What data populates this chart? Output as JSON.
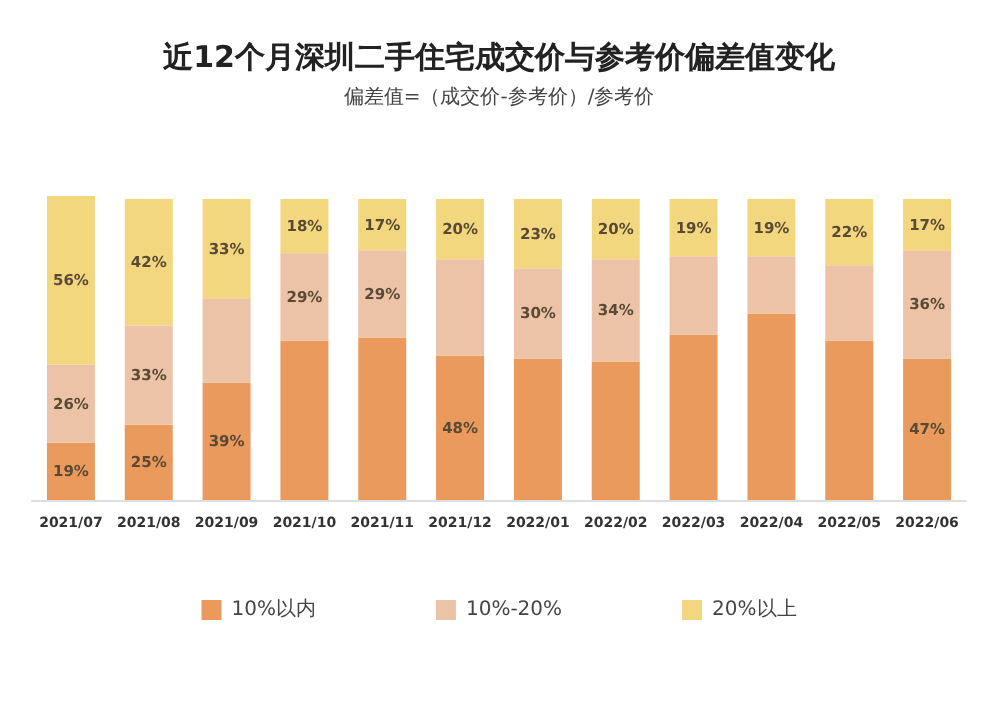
{
  "chart_data": {
    "type": "bar",
    "title": "近12个月深圳二手住宅成交价与参考价偏差值变化",
    "subtitle": "偏差值=（成交价-参考价）/参考价",
    "categories": [
      "2021/07",
      "2021/08",
      "2021/09",
      "2021/10",
      "2021/11",
      "2021/12",
      "2022/01",
      "2022/02",
      "2022/03",
      "2022/04",
      "2022/05",
      "2022/06"
    ],
    "stacked": true,
    "ylim": [
      0,
      101
    ],
    "tick_labels": "x",
    "grid": false,
    "legend": "bottom",
    "series": [
      {
        "name": "10%以内",
        "color": "#eb9a5e",
        "values": [
          19,
          25,
          39,
          53,
          54,
          48,
          47,
          46,
          55,
          62,
          53,
          47
        ],
        "value_labels": [
          "19%",
          "25%",
          "39%",
          null,
          null,
          "48%",
          null,
          null,
          null,
          null,
          null,
          "47%"
        ]
      },
      {
        "name": "10%-20%",
        "color": "#ecc3a6",
        "values": [
          26,
          33,
          28,
          29,
          29,
          32,
          30,
          34,
          26,
          19,
          25,
          36
        ],
        "value_labels": [
          "26%",
          "33%",
          null,
          "29%",
          "29%",
          null,
          "30%",
          "34%",
          null,
          null,
          null,
          "36%"
        ]
      },
      {
        "name": "20%以上",
        "color": "#f2d77f",
        "values": [
          56,
          42,
          33,
          18,
          17,
          20,
          23,
          20,
          19,
          19,
          22,
          17
        ],
        "value_labels": [
          "56%",
          "42%",
          "33%",
          "18%",
          "17%",
          "20%",
          "23%",
          "20%",
          "19%",
          "19%",
          "22%",
          "17%"
        ]
      }
    ]
  }
}
